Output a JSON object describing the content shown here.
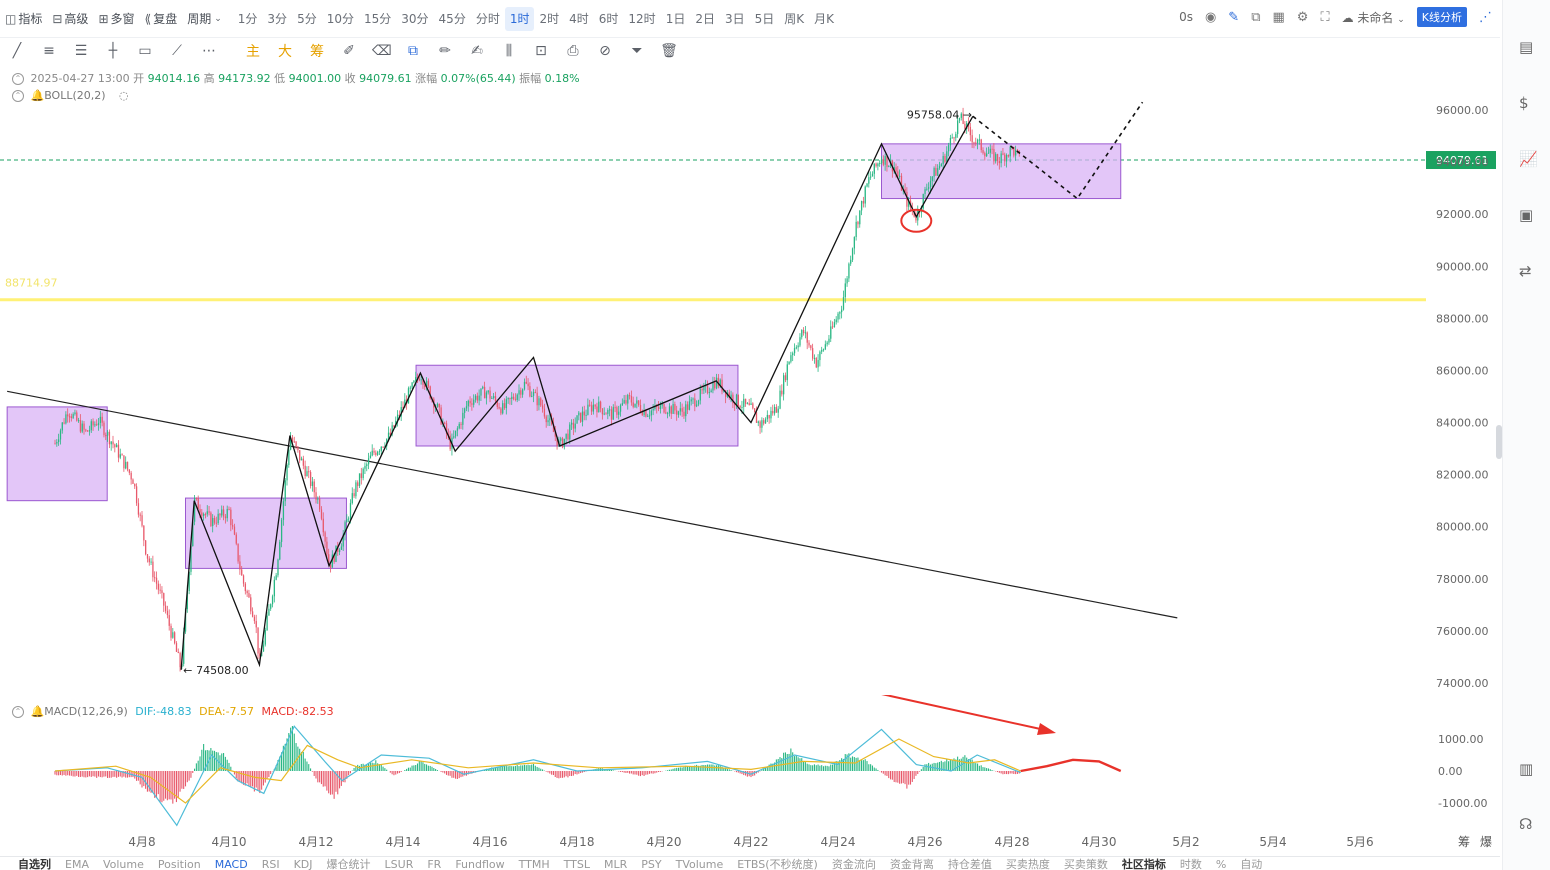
{
  "toolbar": {
    "items": [
      {
        "icon": "chart-indicator-icon",
        "label": "指标"
      },
      {
        "icon": "advanced-icon",
        "label": "高级"
      },
      {
        "icon": "multi-window-icon",
        "label": "多窗"
      },
      {
        "icon": "replay-icon",
        "label": "复盘"
      },
      {
        "icon": "chevron-down-icon",
        "label": "周期"
      }
    ],
    "timeframes": [
      "1分",
      "3分",
      "5分",
      "10分",
      "15分",
      "30分",
      "45分",
      "分时",
      "1时",
      "2时",
      "4时",
      "6时",
      "12时",
      "1日",
      "2日",
      "3日",
      "5日",
      "周K",
      "月K"
    ],
    "active_timeframe": "1时",
    "right": {
      "timer": "0s",
      "workspace": "未命名",
      "kline_button": "K线分析"
    }
  },
  "draw_tools": {
    "main_label": "主",
    "big_label": "大",
    "chip_label": "筹"
  },
  "info": {
    "datetime": "2025-04-27 13:00",
    "open_label": "开",
    "open": "94014.16",
    "high_label": "高",
    "high": "94173.92",
    "low_label": "低",
    "low": "94001.00",
    "close_label": "收",
    "close": "94079.61",
    "change_label": "涨幅",
    "change": "0.07%(65.44)",
    "amplitude_label": "振幅",
    "amplitude": "0.18%",
    "boll": "BOLL(20,2)"
  },
  "macd_info": {
    "name": "MACD(12,26,9)",
    "dif": "DIF:-48.83",
    "dea": "DEA:-7.57",
    "macd": "MACD:-82.53"
  },
  "chart_data": {
    "type": "candlestick",
    "y_axis_ticks": [
      "96000.00",
      "94000.00",
      "92000.00",
      "90000.00",
      "88000.00",
      "86000.00",
      "84000.00",
      "82000.00",
      "80000.00",
      "78000.00",
      "76000.00",
      "74000.00"
    ],
    "ylim": [
      73500,
      97000
    ],
    "x_axis_ticks": [
      "4月8",
      "4月10",
      "4月12",
      "4月14",
      "4月16",
      "4月18",
      "4月20",
      "4月22",
      "4月24",
      "4月26",
      "4月28",
      "4月30",
      "5月2",
      "5月4",
      "5月6"
    ],
    "current_price": "94079.61",
    "horizontal_line_label": "88714.97",
    "horizontal_line_value": 88714.97,
    "high_annotation": "95758.04",
    "low_annotation": "74508.00",
    "macd_axis_ticks": [
      "1000.00",
      "0.00",
      "-1000.00"
    ],
    "macd_ylim": [
      -1900,
      1700
    ],
    "price_path": [
      {
        "d": 0.0,
        "p": 83200
      },
      {
        "d": 0.3,
        "p": 84500
      },
      {
        "d": 0.7,
        "p": 83600
      },
      {
        "d": 1.0,
        "p": 84100
      },
      {
        "d": 1.4,
        "p": 83000
      },
      {
        "d": 1.8,
        "p": 81800
      },
      {
        "d": 2.1,
        "p": 79000
      },
      {
        "d": 2.5,
        "p": 77000
      },
      {
        "d": 2.9,
        "p": 74508
      },
      {
        "d": 3.2,
        "p": 81000
      },
      {
        "d": 3.6,
        "p": 80200
      },
      {
        "d": 4.0,
        "p": 80600
      },
      {
        "d": 4.3,
        "p": 78000
      },
      {
        "d": 4.6,
        "p": 76500
      },
      {
        "d": 4.7,
        "p": 74700
      },
      {
        "d": 5.1,
        "p": 78500
      },
      {
        "d": 5.4,
        "p": 83500
      },
      {
        "d": 5.8,
        "p": 82000
      },
      {
        "d": 6.1,
        "p": 80800
      },
      {
        "d": 6.3,
        "p": 78500
      },
      {
        "d": 6.6,
        "p": 79500
      },
      {
        "d": 6.9,
        "p": 81500
      },
      {
        "d": 7.3,
        "p": 82800
      },
      {
        "d": 7.7,
        "p": 83500
      },
      {
        "d": 8.1,
        "p": 85000
      },
      {
        "d": 8.4,
        "p": 85900
      },
      {
        "d": 8.8,
        "p": 84500
      },
      {
        "d": 9.1,
        "p": 83100
      },
      {
        "d": 9.5,
        "p": 84800
      },
      {
        "d": 9.9,
        "p": 85200
      },
      {
        "d": 10.3,
        "p": 84500
      },
      {
        "d": 10.8,
        "p": 85500
      },
      {
        "d": 11.2,
        "p": 84600
      },
      {
        "d": 11.6,
        "p": 83100
      },
      {
        "d": 12.0,
        "p": 84100
      },
      {
        "d": 12.4,
        "p": 84700
      },
      {
        "d": 12.8,
        "p": 84300
      },
      {
        "d": 13.2,
        "p": 84900
      },
      {
        "d": 13.6,
        "p": 84400
      },
      {
        "d": 14.0,
        "p": 84600
      },
      {
        "d": 14.4,
        "p": 84400
      },
      {
        "d": 14.8,
        "p": 85000
      },
      {
        "d": 15.2,
        "p": 85600
      },
      {
        "d": 15.6,
        "p": 84900
      },
      {
        "d": 16.0,
        "p": 84500
      },
      {
        "d": 16.2,
        "p": 83900
      },
      {
        "d": 16.6,
        "p": 84600
      },
      {
        "d": 16.9,
        "p": 86600
      },
      {
        "d": 17.2,
        "p": 87500
      },
      {
        "d": 17.5,
        "p": 86300
      },
      {
        "d": 17.8,
        "p": 87300
      },
      {
        "d": 18.1,
        "p": 88600
      },
      {
        "d": 18.4,
        "p": 91500
      },
      {
        "d": 18.7,
        "p": 93300
      },
      {
        "d": 19.0,
        "p": 94200
      },
      {
        "d": 19.3,
        "p": 93800
      },
      {
        "d": 19.6,
        "p": 92400
      },
      {
        "d": 19.8,
        "p": 91900
      },
      {
        "d": 20.1,
        "p": 93300
      },
      {
        "d": 20.4,
        "p": 94000
      },
      {
        "d": 20.8,
        "p": 95700
      },
      {
        "d": 21.1,
        "p": 94900
      },
      {
        "d": 21.4,
        "p": 94400
      },
      {
        "d": 21.7,
        "p": 94100
      },
      {
        "d": 22.0,
        "p": 94500
      },
      {
        "d": 22.2,
        "p": 94079
      }
    ],
    "zones": [
      {
        "d1": -1.1,
        "d2": 1.2,
        "p1": 81000,
        "p2": 84600
      },
      {
        "d1": 3.0,
        "d2": 6.7,
        "p1": 78400,
        "p2": 81100
      },
      {
        "d1": 8.3,
        "d2": 15.7,
        "p1": 83100,
        "p2": 86200
      },
      {
        "d1": 19.0,
        "d2": 24.5,
        "p1": 92600,
        "p2": 94700
      }
    ],
    "zigzag": [
      {
        "d": 2.9,
        "p": 74508
      },
      {
        "d": 3.2,
        "p": 81000
      },
      {
        "d": 4.7,
        "p": 74700
      },
      {
        "d": 5.4,
        "p": 83500
      },
      {
        "d": 6.3,
        "p": 78500
      },
      {
        "d": 8.4,
        "p": 85900
      },
      {
        "d": 9.2,
        "p": 82900
      },
      {
        "d": 11.0,
        "p": 86500
      },
      {
        "d": 11.6,
        "p": 83100
      },
      {
        "d": 15.2,
        "p": 85600
      },
      {
        "d": 16.0,
        "p": 84000
      },
      {
        "d": 19.0,
        "p": 94700
      },
      {
        "d": 19.8,
        "p": 91900
      },
      {
        "d": 21.1,
        "p": 95758
      }
    ],
    "projection": [
      {
        "d": 21.1,
        "p": 95758
      },
      {
        "d": 23.5,
        "p": 92600
      },
      {
        "d": 25.0,
        "p": 96300
      }
    ],
    "trendline": [
      {
        "d": -1.1,
        "p": 85200
      },
      {
        "d": 25.8,
        "p": 76500
      }
    ],
    "macd_hist": [
      {
        "d": 0.0,
        "v": -120
      },
      {
        "d": 1.0,
        "v": -200
      },
      {
        "d": 1.8,
        "v": -200
      },
      {
        "d": 2.2,
        "v": -700
      },
      {
        "d": 2.7,
        "v": -1050
      },
      {
        "d": 3.1,
        "v": -300
      },
      {
        "d": 3.4,
        "v": 750
      },
      {
        "d": 3.9,
        "v": 500
      },
      {
        "d": 4.2,
        "v": -300
      },
      {
        "d": 4.7,
        "v": -650
      },
      {
        "d": 5.1,
        "v": 200
      },
      {
        "d": 5.4,
        "v": 1400
      },
      {
        "d": 5.8,
        "v": 300
      },
      {
        "d": 6.0,
        "v": -250
      },
      {
        "d": 6.4,
        "v": -850
      },
      {
        "d": 6.9,
        "v": 150
      },
      {
        "d": 7.4,
        "v": 300
      },
      {
        "d": 7.8,
        "v": -150
      },
      {
        "d": 8.4,
        "v": 300
      },
      {
        "d": 9.2,
        "v": -250
      },
      {
        "d": 10.0,
        "v": 100
      },
      {
        "d": 11.0,
        "v": 200
      },
      {
        "d": 11.6,
        "v": -250
      },
      {
        "d": 12.5,
        "v": 100
      },
      {
        "d": 13.5,
        "v": -150
      },
      {
        "d": 14.5,
        "v": 150
      },
      {
        "d": 15.2,
        "v": 200
      },
      {
        "d": 16.0,
        "v": -200
      },
      {
        "d": 16.5,
        "v": 250
      },
      {
        "d": 16.9,
        "v": 650
      },
      {
        "d": 17.3,
        "v": 200
      },
      {
        "d": 17.8,
        "v": 150
      },
      {
        "d": 18.2,
        "v": 500
      },
      {
        "d": 18.6,
        "v": 350
      },
      {
        "d": 19.2,
        "v": -250
      },
      {
        "d": 19.6,
        "v": -500
      },
      {
        "d": 20.0,
        "v": 200
      },
      {
        "d": 20.4,
        "v": 300
      },
      {
        "d": 20.9,
        "v": 450
      },
      {
        "d": 21.3,
        "v": 150
      },
      {
        "d": 21.8,
        "v": -100
      },
      {
        "d": 22.2,
        "v": -80
      }
    ],
    "dif": [
      {
        "d": 0.0,
        "v": 0
      },
      {
        "d": 1.2,
        "v": 100
      },
      {
        "d": 2.0,
        "v": -200
      },
      {
        "d": 2.8,
        "v": -1700
      },
      {
        "d": 3.6,
        "v": 500
      },
      {
        "d": 4.2,
        "v": -300
      },
      {
        "d": 4.8,
        "v": -700
      },
      {
        "d": 5.5,
        "v": 1400
      },
      {
        "d": 6.2,
        "v": 300
      },
      {
        "d": 6.6,
        "v": -300
      },
      {
        "d": 7.5,
        "v": 500
      },
      {
        "d": 8.6,
        "v": 400
      },
      {
        "d": 9.4,
        "v": -100
      },
      {
        "d": 11.0,
        "v": 350
      },
      {
        "d": 12.0,
        "v": 0
      },
      {
        "d": 13.5,
        "v": 100
      },
      {
        "d": 15.0,
        "v": 300
      },
      {
        "d": 16.0,
        "v": -100
      },
      {
        "d": 17.0,
        "v": 500
      },
      {
        "d": 18.0,
        "v": 200
      },
      {
        "d": 19.0,
        "v": 1300
      },
      {
        "d": 19.8,
        "v": 200
      },
      {
        "d": 20.6,
        "v": 0
      },
      {
        "d": 21.2,
        "v": 500
      },
      {
        "d": 22.2,
        "v": -50
      }
    ],
    "dea": [
      {
        "d": 0.0,
        "v": 0
      },
      {
        "d": 1.4,
        "v": 150
      },
      {
        "d": 2.2,
        "v": -200
      },
      {
        "d": 3.0,
        "v": -1000
      },
      {
        "d": 3.8,
        "v": 100
      },
      {
        "d": 4.6,
        "v": -200
      },
      {
        "d": 5.2,
        "v": -300
      },
      {
        "d": 5.8,
        "v": 800
      },
      {
        "d": 6.5,
        "v": 350
      },
      {
        "d": 7.0,
        "v": 100
      },
      {
        "d": 8.2,
        "v": 350
      },
      {
        "d": 9.5,
        "v": 100
      },
      {
        "d": 11.0,
        "v": 250
      },
      {
        "d": 12.5,
        "v": 100
      },
      {
        "d": 14.5,
        "v": 150
      },
      {
        "d": 16.0,
        "v": 50
      },
      {
        "d": 17.2,
        "v": 300
      },
      {
        "d": 18.4,
        "v": 250
      },
      {
        "d": 19.4,
        "v": 1000
      },
      {
        "d": 20.2,
        "v": 450
      },
      {
        "d": 21.0,
        "v": 250
      },
      {
        "d": 21.6,
        "v": 350
      },
      {
        "d": 22.2,
        "v": 0
      }
    ],
    "macd_projection": [
      {
        "d": 22.2,
        "v": 0
      },
      {
        "d": 22.8,
        "v": 150
      },
      {
        "d": 23.4,
        "v": 350
      },
      {
        "d": 24.0,
        "v": 300
      },
      {
        "d": 24.5,
        "v": 0
      }
    ],
    "colors": {
      "up": "#2ab784",
      "down": "#e8596b",
      "zone_fill": "#d9b3f5",
      "zone_border": "#9b59d0",
      "horizontal_line": "#fff176",
      "price_badge": "#1aa260",
      "dif": "#4dbcd8",
      "dea": "#e9b824",
      "arrow": "#e8322a"
    }
  },
  "sidebar": {
    "icons": [
      "document-icon",
      "dollar-icon",
      "trend-chart-icon",
      "monitor-chart-icon",
      "exchange-icon",
      "layout-icon",
      "headset-icon"
    ]
  },
  "bottom_tabs": [
    "自选列",
    "EMA",
    "Volume",
    "Position",
    "MACD",
    "RSI",
    "KDJ",
    "爆仓统计",
    "LSUR",
    "FR",
    "Fundflow",
    "TTMH",
    "TTSL",
    "MLR",
    "PSY",
    "TVolume",
    "ETBS(不秒统度)",
    "资金流向",
    "资金背离",
    "持仓差值",
    "买卖热度",
    "买卖策数",
    "社区指标",
    "时数",
    "%",
    "自动"
  ],
  "bottom_right": {
    "chip": "筹",
    "burst": "爆"
  }
}
